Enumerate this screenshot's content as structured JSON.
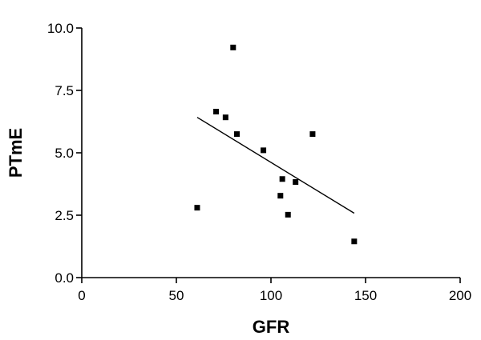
{
  "chart_data": {
    "type": "scatter",
    "title": "",
    "xlabel": "GFR",
    "ylabel": "PTmE",
    "xlim": [
      0,
      200
    ],
    "ylim": [
      0,
      10
    ],
    "x_ticks": [
      0,
      50,
      100,
      150,
      200
    ],
    "y_ticks": [
      0.0,
      2.5,
      5.0,
      7.5,
      10.0
    ],
    "x_tick_labels": [
      "0",
      "50",
      "100",
      "150",
      "200"
    ],
    "y_tick_labels": [
      "0.0",
      "2.5",
      "5.0",
      "7.5",
      "10.0"
    ],
    "grid": false,
    "legend": "none",
    "marker": "square",
    "color": "#000000",
    "points": [
      {
        "x": 61,
        "y": 2.8
      },
      {
        "x": 71,
        "y": 6.65
      },
      {
        "x": 76,
        "y": 6.42
      },
      {
        "x": 80,
        "y": 9.22
      },
      {
        "x": 82,
        "y": 5.75
      },
      {
        "x": 96,
        "y": 5.1
      },
      {
        "x": 105,
        "y": 3.28
      },
      {
        "x": 106,
        "y": 3.95
      },
      {
        "x": 109,
        "y": 2.52
      },
      {
        "x": 113,
        "y": 3.83
      },
      {
        "x": 122,
        "y": 5.75
      },
      {
        "x": 144,
        "y": 1.45
      }
    ],
    "trendline": {
      "type": "linear",
      "x_range": [
        61,
        144
      ],
      "y_values": [
        6.42,
        2.58
      ]
    }
  }
}
